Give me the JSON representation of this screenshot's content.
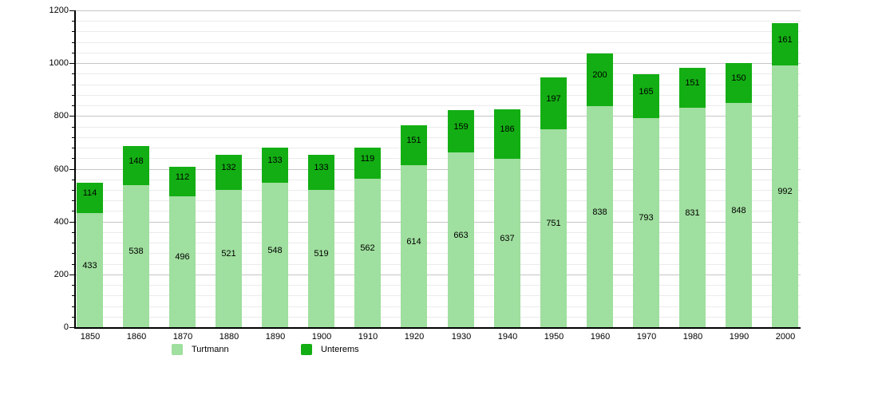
{
  "chart_data": {
    "type": "bar",
    "stacked": true,
    "title": "",
    "xlabel": "",
    "ylabel": "",
    "categories": [
      "1850",
      "1860",
      "1870",
      "1880",
      "1890",
      "1900",
      "1910",
      "1920",
      "1930",
      "1940",
      "1950",
      "1960",
      "1970",
      "1980",
      "1990",
      "2000"
    ],
    "series": [
      {
        "name": "Turtmann",
        "color": "#9fdf9f",
        "values": [
          433,
          538,
          496,
          521,
          548,
          519,
          562,
          614,
          663,
          637,
          751,
          838,
          793,
          831,
          848,
          992
        ]
      },
      {
        "name": "Unterems",
        "color": "#13ae13",
        "values": [
          114,
          148,
          112,
          132,
          133,
          133,
          119,
          151,
          159,
          186,
          197,
          200,
          165,
          151,
          150,
          161
        ]
      }
    ],
    "ylim": [
      0,
      1200
    ],
    "yticks": [
      0,
      200,
      400,
      600,
      800,
      1000,
      1200
    ],
    "ytick_interval": 200,
    "minor_grid_interval": 40,
    "grid": true,
    "legend_position": "bottom",
    "value_labels": true
  },
  "colors": {
    "turtmann": "#9fdf9f",
    "unterems": "#13ae13",
    "axis": "#000000",
    "major_grid": "#c6c6c6",
    "minor_grid": "#ebebeb",
    "background": "#ffffff"
  }
}
